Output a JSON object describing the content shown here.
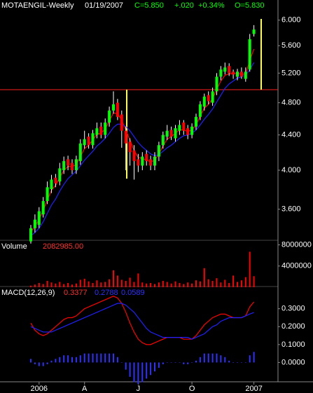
{
  "header": {
    "symbol": "MOTAENGIL-Weekly",
    "date": "01/19/2007",
    "close": "C=5.850",
    "change": "+.020",
    "change_pct": "+0.34%",
    "open": "O=5.830"
  },
  "chart_data": [
    {
      "type": "candlestick",
      "log": true,
      "ylim": [
        3.31,
        6.17
      ],
      "yticks": [
        {
          "value": 6,
          "label": "6.000"
        },
        {
          "value": 5.6,
          "label": "5.600"
        },
        {
          "value": 5.2,
          "label": "5.200"
        },
        {
          "value": 4.8,
          "label": "4.800"
        },
        {
          "value": 4.4,
          "label": "4.400"
        },
        {
          "value": 4,
          "label": "4.000"
        },
        {
          "value": 3.6,
          "label": "3.600"
        }
      ],
      "categories": [
        null,
        null,
        "2006",
        null,
        null,
        null,
        null,
        null,
        null,
        null,
        null,
        null,
        null,
        "A",
        null,
        null,
        null,
        null,
        null,
        null,
        null,
        null,
        null,
        null,
        null,
        null,
        "J",
        null,
        null,
        null,
        null,
        null,
        null,
        null,
        null,
        null,
        null,
        null,
        null,
        "O",
        null,
        null,
        null,
        null,
        null,
        null,
        null,
        null,
        null,
        null,
        null,
        null,
        null,
        null,
        "2007"
      ],
      "up_color": "#00ff00",
      "down_color": "#ff0000",
      "wick_color": "#ffffff",
      "open": [
        3.3,
        3.42,
        3.45,
        3.55,
        3.68,
        3.8,
        3.92,
        3.88,
        4.0,
        4.12,
        4.08,
        4.0,
        4.1,
        4.28,
        4.38,
        4.28,
        4.4,
        4.5,
        4.4,
        4.55,
        4.7,
        4.8,
        4.65,
        4.45,
        4.32,
        4.22,
        4.12,
        4.05,
        4.18,
        4.12,
        4.05,
        4.15,
        4.28,
        4.38,
        4.46,
        4.36,
        4.45,
        4.55,
        4.48,
        4.4,
        4.5,
        4.62,
        4.75,
        4.9,
        4.8,
        4.95,
        5.15,
        5.22,
        5.3,
        5.22,
        5.15,
        5.22,
        5.12,
        5.25,
        5.78
      ],
      "high": [
        3.45,
        3.55,
        3.62,
        3.72,
        3.88,
        3.95,
        3.96,
        4.08,
        4.15,
        4.16,
        4.12,
        4.16,
        4.35,
        4.45,
        4.42,
        4.46,
        4.55,
        4.55,
        4.6,
        4.75,
        4.95,
        4.85,
        4.7,
        4.5,
        4.36,
        4.28,
        4.18,
        4.2,
        4.22,
        4.16,
        4.2,
        4.32,
        4.44,
        4.52,
        4.5,
        4.52,
        4.58,
        4.58,
        4.52,
        4.54,
        4.66,
        4.82,
        4.92,
        4.95,
        5.0,
        5.2,
        5.3,
        5.35,
        5.34,
        5.25,
        5.26,
        5.28,
        5.28,
        5.78,
        5.92
      ],
      "low": [
        3.28,
        3.38,
        3.42,
        3.52,
        3.65,
        3.76,
        3.82,
        3.84,
        3.96,
        4.0,
        3.96,
        3.96,
        4.06,
        4.24,
        4.24,
        4.24,
        4.36,
        4.36,
        4.36,
        4.5,
        4.66,
        4.58,
        4.25,
        4.0,
        4.05,
        3.9,
        3.98,
        4.0,
        4.05,
        4.0,
        4.0,
        4.1,
        4.24,
        4.34,
        4.34,
        4.32,
        4.4,
        4.4,
        4.35,
        4.36,
        4.46,
        4.58,
        4.7,
        4.78,
        4.76,
        4.9,
        5.1,
        5.18,
        5.16,
        5.12,
        5.1,
        5.12,
        5.08,
        5.22,
        5.74
      ],
      "close": [
        3.42,
        3.5,
        3.58,
        3.68,
        3.82,
        3.9,
        3.86,
        4.02,
        4.1,
        4.05,
        4.0,
        4.12,
        4.3,
        4.35,
        4.28,
        4.42,
        4.48,
        4.4,
        4.55,
        4.7,
        4.78,
        4.62,
        4.45,
        4.3,
        4.2,
        4.1,
        4.05,
        4.15,
        4.1,
        4.05,
        4.15,
        4.28,
        4.4,
        4.45,
        4.38,
        4.48,
        4.52,
        4.45,
        4.4,
        4.5,
        4.62,
        4.78,
        4.88,
        4.82,
        4.95,
        5.15,
        5.25,
        5.28,
        5.2,
        5.18,
        5.22,
        5.15,
        5.22,
        5.7,
        5.85
      ],
      "overlays": [
        {
          "color": "#ff0000",
          "values": [
            3.38,
            3.44,
            3.5,
            3.59,
            3.69,
            3.79,
            3.84,
            3.92,
            4.0,
            4.04,
            4.04,
            4.06,
            4.15,
            4.24,
            4.28,
            4.34,
            4.41,
            4.42,
            4.47,
            4.57,
            4.67,
            4.66,
            4.58,
            4.46,
            4.34,
            4.22,
            4.14,
            4.13,
            4.11,
            4.09,
            4.11,
            4.18,
            4.27,
            4.35,
            4.38,
            4.42,
            4.46,
            4.46,
            4.44,
            4.46,
            4.52,
            4.63,
            4.73,
            4.78,
            4.85,
            4.98,
            5.09,
            5.17,
            5.19,
            5.19,
            5.2,
            5.18,
            5.19,
            5.38,
            5.55
          ]
        },
        {
          "color": "#2020ff",
          "values": [
            3.35,
            3.38,
            3.42,
            3.48,
            3.56,
            3.64,
            3.7,
            3.78,
            3.85,
            3.91,
            3.95,
            3.99,
            4.05,
            4.11,
            4.16,
            4.21,
            4.27,
            4.31,
            4.36,
            4.42,
            4.49,
            4.53,
            4.53,
            4.5,
            4.45,
            4.38,
            4.31,
            4.26,
            4.22,
            4.18,
            4.16,
            4.17,
            4.21,
            4.25,
            4.28,
            4.32,
            4.36,
            4.39,
            4.4,
            4.42,
            4.46,
            4.52,
            4.59,
            4.65,
            4.72,
            4.81,
            4.9,
            4.99,
            5.05,
            5.09,
            5.13,
            5.15,
            5.17,
            5.25,
            5.35
          ]
        }
      ]
    },
    {
      "type": "bar",
      "title": "Volume",
      "color": "#ff0000",
      "ylim": [
        0,
        8600000
      ],
      "yticks": [
        8000000,
        4000000
      ],
      "last": {
        "value": 2082985,
        "label": "2082985.00"
      },
      "values": [
        300000,
        500000,
        800000,
        600000,
        1200000,
        900000,
        700000,
        1000000,
        600000,
        800000,
        500000,
        700000,
        1400000,
        1600000,
        1100000,
        800000,
        1300000,
        900000,
        1000000,
        1500000,
        3200000,
        2200000,
        1400000,
        1200000,
        1800000,
        1000000,
        2600000,
        900000,
        700000,
        800000,
        600000,
        900000,
        1200000,
        1000000,
        700000,
        1100000,
        800000,
        600000,
        900000,
        700000,
        1300000,
        1100000,
        3600000,
        1500000,
        1200000,
        1700000,
        900000,
        1400000,
        800000,
        2200000,
        1000000,
        1300000,
        1900000,
        6700000,
        2082985
      ]
    },
    {
      "type": "line",
      "title": "MACD(12,26,9)",
      "ylim": [
        -0.1,
        0.42
      ],
      "yticks": [
        {
          "value": 0.3,
          "label": "0.3000"
        },
        {
          "value": 0.2,
          "label": "0.2000"
        },
        {
          "value": 0.1,
          "label": "0.1000"
        },
        {
          "value": 0,
          "label": "0.0000"
        }
      ],
      "series": [
        {
          "color": "#ff0000",
          "values": [
            0.22,
            0.18,
            0.16,
            0.15,
            0.16,
            0.18,
            0.2,
            0.22,
            0.24,
            0.25,
            0.25,
            0.26,
            0.28,
            0.3,
            0.31,
            0.32,
            0.33,
            0.34,
            0.35,
            0.36,
            0.37,
            0.36,
            0.33,
            0.28,
            0.22,
            0.17,
            0.13,
            0.11,
            0.1,
            0.1,
            0.11,
            0.12,
            0.13,
            0.14,
            0.14,
            0.14,
            0.14,
            0.13,
            0.13,
            0.13,
            0.15,
            0.18,
            0.21,
            0.23,
            0.25,
            0.26,
            0.27,
            0.27,
            0.26,
            0.25,
            0.25,
            0.25,
            0.26,
            0.31,
            0.3377
          ]
        },
        {
          "color": "#2020ff",
          "values": [
            0.2,
            0.19,
            0.18,
            0.17,
            0.17,
            0.17,
            0.18,
            0.19,
            0.2,
            0.21,
            0.22,
            0.23,
            0.24,
            0.25,
            0.26,
            0.27,
            0.28,
            0.29,
            0.3,
            0.31,
            0.32,
            0.33,
            0.33,
            0.32,
            0.3,
            0.28,
            0.25,
            0.22,
            0.19,
            0.17,
            0.16,
            0.15,
            0.14,
            0.14,
            0.14,
            0.14,
            0.14,
            0.14,
            0.14,
            0.13,
            0.14,
            0.15,
            0.16,
            0.18,
            0.2,
            0.21,
            0.23,
            0.24,
            0.25,
            0.25,
            0.25,
            0.25,
            0.26,
            0.27,
            0.2788
          ]
        }
      ],
      "histogram": {
        "color": "#3030ff",
        "values": [
          0.02,
          -0.01,
          -0.02,
          -0.02,
          -0.01,
          0.01,
          0.02,
          0.03,
          0.04,
          0.04,
          0.03,
          0.03,
          0.04,
          0.05,
          0.05,
          0.05,
          0.05,
          0.05,
          0.05,
          0.05,
          0.05,
          0.03,
          0.0,
          -0.04,
          -0.08,
          -0.11,
          -0.12,
          -0.11,
          -0.09,
          -0.07,
          -0.05,
          -0.03,
          -0.01,
          0.0,
          0.0,
          0.0,
          0.0,
          -0.01,
          -0.01,
          0.0,
          0.01,
          0.03,
          0.05,
          0.05,
          0.05,
          0.05,
          0.04,
          0.03,
          0.01,
          0.0,
          0.0,
          0.0,
          0.0,
          0.04,
          0.0589
        ]
      }
    }
  ]
}
